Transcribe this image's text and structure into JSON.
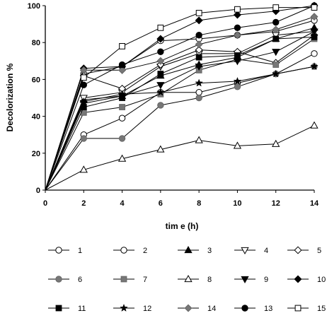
{
  "chart_data": {
    "type": "line",
    "xlabel": "tim e (h)",
    "ylabel": "Decolorization %",
    "xlim": [
      0,
      14
    ],
    "ylim": [
      0,
      100
    ],
    "x_ticks": [
      "0",
      "2",
      "4",
      "6",
      "8",
      "10",
      "12",
      "14"
    ],
    "y_ticks": [
      "0",
      "20",
      "40",
      "60",
      "80",
      "100"
    ],
    "grid": false,
    "legend_position": "bottom",
    "x": [
      0,
      2,
      4,
      6,
      8,
      10,
      12,
      14
    ],
    "series": [
      {
        "name": "1",
        "marker": "circle-open",
        "values": [
          0,
          30,
          39,
          53,
          53,
          58,
          63,
          74
        ]
      },
      {
        "name": "2",
        "marker": "circle-open",
        "values": [
          0,
          63,
          67,
          81,
          82,
          84,
          86,
          92
        ]
      },
      {
        "name": "3",
        "marker": "triangle-up-filled",
        "values": [
          0,
          49,
          51,
          62,
          68,
          72,
          82,
          88
        ]
      },
      {
        "name": "4",
        "marker": "triangle-down-open",
        "values": [
          0,
          50,
          53,
          67,
          74,
          74,
          84,
          86
        ]
      },
      {
        "name": "5",
        "marker": "diamond-open",
        "values": [
          0,
          62,
          55,
          68,
          76,
          75,
          69,
          84
        ]
      },
      {
        "name": "6",
        "marker": "circle-gray",
        "values": [
          0,
          28,
          28,
          46,
          50,
          56,
          63,
          67
        ]
      },
      {
        "name": "7",
        "marker": "square-gray",
        "values": [
          0,
          42,
          45,
          52,
          65,
          71,
          68,
          82
        ]
      },
      {
        "name": "8",
        "marker": "triangle-up-open",
        "values": [
          0,
          11,
          17,
          22,
          27,
          24,
          25,
          35
        ]
      },
      {
        "name": "9",
        "marker": "triangle-down-filled",
        "values": [
          0,
          47,
          51,
          57,
          67,
          70,
          75,
          86
        ]
      },
      {
        "name": "10",
        "marker": "diamond-filled",
        "values": [
          0,
          66,
          67,
          82,
          92,
          95,
          97,
          100
        ]
      },
      {
        "name": "11",
        "marker": "square-filled",
        "values": [
          0,
          45,
          50,
          63,
          72,
          73,
          82,
          83
        ]
      },
      {
        "name": "12",
        "marker": "star-filled",
        "values": [
          0,
          48,
          52,
          53,
          58,
          59,
          63,
          67
        ]
      },
      {
        "name": "14",
        "marker": "diamond-gray",
        "values": [
          0,
          65,
          65,
          70,
          79,
          84,
          87,
          94
        ]
      },
      {
        "name": "13",
        "marker": "circle-filled",
        "values": [
          0,
          57,
          68,
          75,
          84,
          88,
          91,
          100
        ]
      },
      {
        "name": "15",
        "marker": "square-open",
        "values": [
          0,
          61,
          78,
          88,
          96,
          98,
          99,
          99
        ]
      }
    ]
  }
}
